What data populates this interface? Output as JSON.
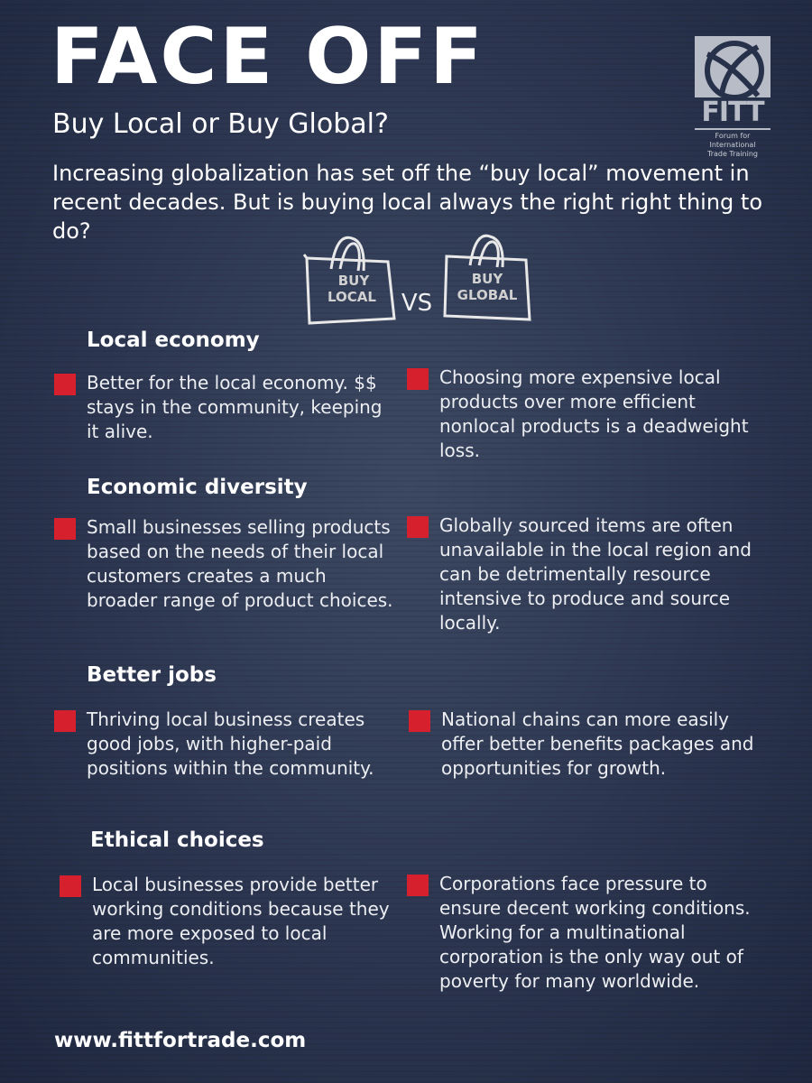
{
  "header": {
    "title": "FACE OFF",
    "subtitle": "Buy Local or Buy Global?",
    "intro": "Increasing globalization has set off the “buy local” movement in recent decades. But is buying local always the right right thing to do?"
  },
  "logo": {
    "name": "FITT",
    "tagline_1": "Forum for International",
    "tagline_2": "Trade Training"
  },
  "vs_graphic": {
    "left_bag": [
      "BUY",
      "LOCAL"
    ],
    "vs": "VS",
    "right_bag": [
      "BUY",
      "GLOBAL"
    ]
  },
  "colors": {
    "bullet": "#d6202e",
    "background": "#2c3650"
  },
  "sections": [
    {
      "heading": "Local economy",
      "local": "Better for the local economy. $$ stays in the community, keeping it alive.",
      "global": "Choosing more expensive local products over more efficient nonlocal products is a deadweight loss."
    },
    {
      "heading": "Economic diversity",
      "local": "Small businesses selling products based on the needs of their local customers creates a much broader range of product choices.",
      "global": "Globally sourced items are often unavailable in the local region and can be detrimentally resource intensive to produce and source locally."
    },
    {
      "heading": "Better jobs",
      "local": "Thriving local business creates good jobs, with higher-paid positions within the community.",
      "global": "National chains can more easily offer better benefits packages and opportunities for growth."
    },
    {
      "heading": "Ethical choices",
      "local": "Local businesses provide better working conditions because they are more exposed to local communities.",
      "global": "Corporations face pressure to ensure decent working conditions. Working for a multinational corporation is the only way out of poverty for many worldwide."
    }
  ],
  "footer": {
    "url": "www.fittfortrade.com"
  }
}
